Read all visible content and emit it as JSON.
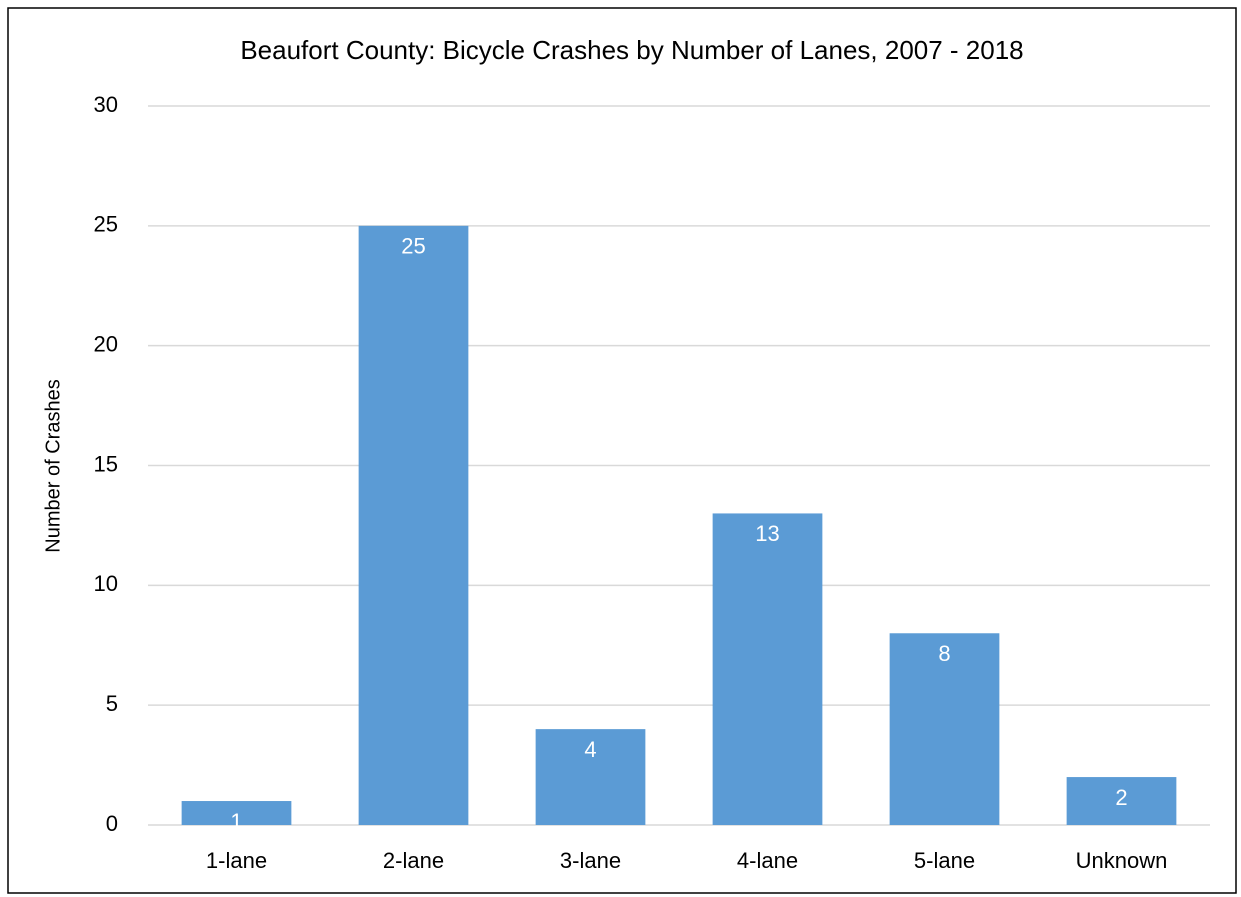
{
  "chart_data": {
    "type": "bar",
    "title": "Beaufort County: Bicycle Crashes by Number of Lanes, 2007 - 2018",
    "y_label": "Number of Crashes",
    "categories": [
      "1-lane",
      "2-lane",
      "3-lane",
      "4-lane",
      "5-lane",
      "Unknown"
    ],
    "values": [
      1,
      25,
      4,
      13,
      8,
      2
    ],
    "color": "#5b9bd5",
    "ylim": [
      0,
      30
    ],
    "yticks": [
      0,
      5,
      10,
      15,
      20,
      25,
      30
    ],
    "grid": true
  }
}
